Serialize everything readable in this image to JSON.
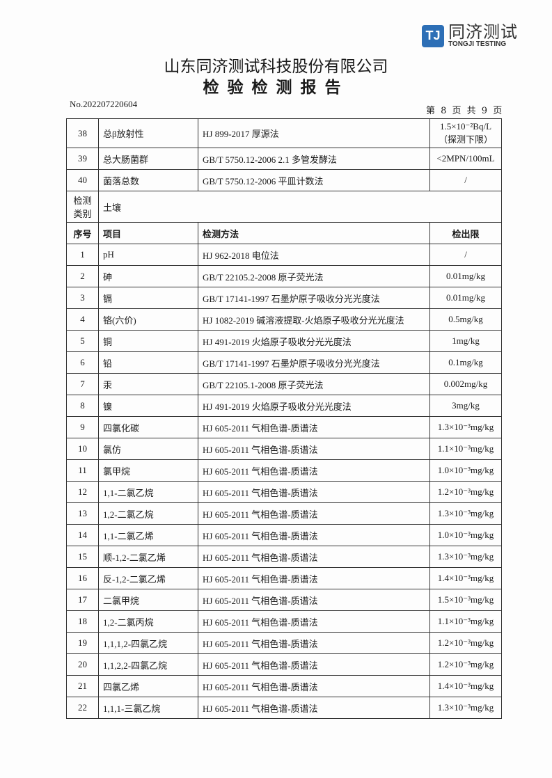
{
  "logo": {
    "mark": "TJ",
    "cn": "同济测试",
    "en": "TONGJI TESTING"
  },
  "header": {
    "company": "山东同济测试科技股份有限公司",
    "title": "检验检测报告",
    "report_no": "No.202207220604",
    "page_info": "第 8 页 共 9 页"
  },
  "water_rows": [
    {
      "no": "38",
      "item": "总β放射性",
      "method": "HJ 899-2017  厚源法",
      "limit": "1.5×10⁻²Bq/L",
      "limit_note": "（探测下限）"
    },
    {
      "no": "39",
      "item": "总大肠菌群",
      "method": "GB/T 5750.12-2006 2.1  多管发酵法",
      "limit": "<2MPN/100mL"
    },
    {
      "no": "40",
      "item": "菌落总数",
      "method": "GB/T 5750.12-2006  平皿计数法",
      "limit": "/"
    }
  ],
  "category": {
    "label": "检测类别",
    "value": "土壤"
  },
  "columns": {
    "no": "序号",
    "item": "项目",
    "method": "检测方法",
    "limit": "检出限"
  },
  "soil_rows": [
    {
      "no": "1",
      "item": "pH",
      "method": "HJ 962-2018  电位法",
      "limit": "/"
    },
    {
      "no": "2",
      "item": "砷",
      "method": "GB/T 22105.2-2008  原子荧光法",
      "limit": "0.01mg/kg"
    },
    {
      "no": "3",
      "item": "镉",
      "method": "GB/T 17141-1997  石墨炉原子吸收分光光度法",
      "limit": "0.01mg/kg"
    },
    {
      "no": "4",
      "item": "铬(六价)",
      "method": "HJ 1082-2019  碱溶液提取-火焰原子吸收分光光度法",
      "limit": "0.5mg/kg"
    },
    {
      "no": "5",
      "item": "铜",
      "method": "HJ 491-2019  火焰原子吸收分光光度法",
      "limit": "1mg/kg"
    },
    {
      "no": "6",
      "item": "铅",
      "method": "GB/T 17141-1997  石墨炉原子吸收分光光度法",
      "limit": "0.1mg/kg"
    },
    {
      "no": "7",
      "item": "汞",
      "method": "GB/T 22105.1-2008  原子荧光法",
      "limit": "0.002mg/kg"
    },
    {
      "no": "8",
      "item": "镍",
      "method": "HJ 491-2019  火焰原子吸收分光光度法",
      "limit": "3mg/kg"
    },
    {
      "no": "9",
      "item": "四氯化碳",
      "method": "HJ 605-2011  气相色谱-质谱法",
      "limit": "1.3×10⁻³mg/kg"
    },
    {
      "no": "10",
      "item": "氯仿",
      "method": "HJ 605-2011  气相色谱-质谱法",
      "limit": "1.1×10⁻³mg/kg"
    },
    {
      "no": "11",
      "item": "氯甲烷",
      "method": "HJ 605-2011  气相色谱-质谱法",
      "limit": "1.0×10⁻³mg/kg"
    },
    {
      "no": "12",
      "item": "1,1-二氯乙烷",
      "method": "HJ 605-2011  气相色谱-质谱法",
      "limit": "1.2×10⁻³mg/kg"
    },
    {
      "no": "13",
      "item": "1,2-二氯乙烷",
      "method": "HJ 605-2011  气相色谱-质谱法",
      "limit": "1.3×10⁻³mg/kg"
    },
    {
      "no": "14",
      "item": "1,1-二氯乙烯",
      "method": "HJ 605-2011  气相色谱-质谱法",
      "limit": "1.0×10⁻³mg/kg"
    },
    {
      "no": "15",
      "item": "顺-1,2-二氯乙烯",
      "method": "HJ 605-2011  气相色谱-质谱法",
      "limit": "1.3×10⁻³mg/kg"
    },
    {
      "no": "16",
      "item": "反-1,2-二氯乙烯",
      "method": "HJ 605-2011  气相色谱-质谱法",
      "limit": "1.4×10⁻³mg/kg"
    },
    {
      "no": "17",
      "item": "二氯甲烷",
      "method": "HJ 605-2011  气相色谱-质谱法",
      "limit": "1.5×10⁻³mg/kg"
    },
    {
      "no": "18",
      "item": "1,2-二氯丙烷",
      "method": "HJ 605-2011  气相色谱-质谱法",
      "limit": "1.1×10⁻³mg/kg"
    },
    {
      "no": "19",
      "item": "1,1,1,2-四氯乙烷",
      "method": "HJ 605-2011  气相色谱-质谱法",
      "limit": "1.2×10⁻³mg/kg"
    },
    {
      "no": "20",
      "item": "1,1,2,2-四氯乙烷",
      "method": "HJ 605-2011  气相色谱-质谱法",
      "limit": "1.2×10⁻³mg/kg"
    },
    {
      "no": "21",
      "item": "四氯乙烯",
      "method": "HJ 605-2011  气相色谱-质谱法",
      "limit": "1.4×10⁻³mg/kg"
    },
    {
      "no": "22",
      "item": "1,1,1-三氯乙烷",
      "method": "HJ 605-2011  气相色谱-质谱法",
      "limit": "1.3×10⁻³mg/kg"
    }
  ]
}
